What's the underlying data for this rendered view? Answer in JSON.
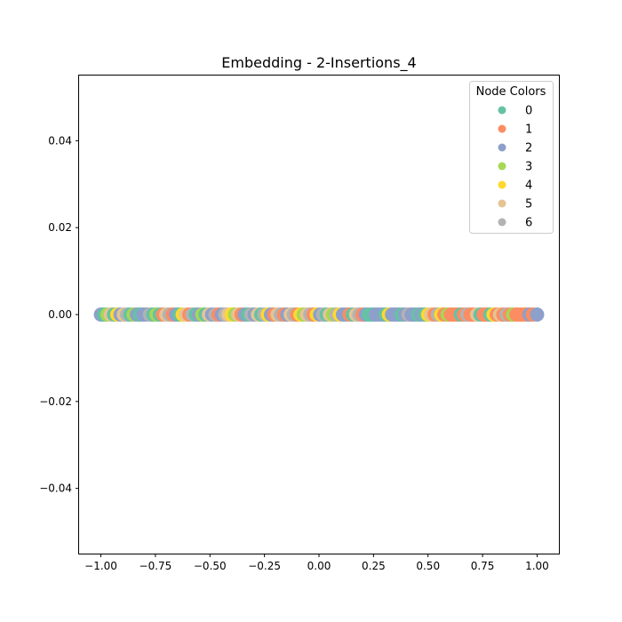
{
  "chart_data": {
    "type": "scatter",
    "title": "Embedding - 2-Insertions_4",
    "xlabel": "",
    "ylabel": "",
    "xlim": [
      -1.1,
      1.1
    ],
    "ylim": [
      -0.055,
      0.055
    ],
    "x_ticks": [
      -1.0,
      -0.75,
      -0.5,
      -0.25,
      0.0,
      0.25,
      0.5,
      0.75,
      1.0
    ],
    "x_tick_labels": [
      "−1.00",
      "−0.75",
      "−0.50",
      "−0.25",
      "0.00",
      "0.25",
      "0.50",
      "0.75",
      "1.00"
    ],
    "y_ticks": [
      0.04,
      0.02,
      0.0,
      -0.02,
      -0.04
    ],
    "y_tick_labels": [
      "0.04",
      "0.02",
      "0.00",
      "−0.02",
      "−0.04"
    ],
    "grid": false,
    "legend": {
      "title": "Node Colors",
      "placement": "top-right",
      "entries": [
        {
          "label": "0",
          "color": "#66c2a5"
        },
        {
          "label": "1",
          "color": "#fc8d62"
        },
        {
          "label": "2",
          "color": "#8da0cb"
        },
        {
          "label": "3",
          "color": "#a6d854"
        },
        {
          "label": "4",
          "color": "#ffd92f"
        },
        {
          "label": "5",
          "color": "#e5c494"
        },
        {
          "label": "6",
          "color": "#b3b3b3"
        }
      ]
    },
    "points": [
      {
        "x": -1.0,
        "y": 0,
        "c": 2
      },
      {
        "x": -0.985,
        "y": 0,
        "c": 0
      },
      {
        "x": -0.97,
        "y": 0,
        "c": 3
      },
      {
        "x": -0.955,
        "y": 0,
        "c": 5
      },
      {
        "x": -0.94,
        "y": 0,
        "c": 0
      },
      {
        "x": -0.925,
        "y": 0,
        "c": 4
      },
      {
        "x": -0.91,
        "y": 0,
        "c": 2
      },
      {
        "x": -0.895,
        "y": 0,
        "c": 5
      },
      {
        "x": -0.88,
        "y": 0,
        "c": 6
      },
      {
        "x": -0.865,
        "y": 0,
        "c": 0
      },
      {
        "x": -0.85,
        "y": 0,
        "c": 3
      },
      {
        "x": -0.835,
        "y": 0,
        "c": 2
      },
      {
        "x": -0.82,
        "y": 0,
        "c": 0
      },
      {
        "x": -0.805,
        "y": 0,
        "c": 2
      },
      {
        "x": -0.79,
        "y": 0,
        "c": 2
      },
      {
        "x": -0.775,
        "y": 0,
        "c": 6
      },
      {
        "x": -0.76,
        "y": 0,
        "c": 0
      },
      {
        "x": -0.745,
        "y": 0,
        "c": 3
      },
      {
        "x": -0.73,
        "y": 0,
        "c": 0
      },
      {
        "x": -0.715,
        "y": 0,
        "c": 1
      },
      {
        "x": -0.7,
        "y": 0,
        "c": 5
      },
      {
        "x": -0.685,
        "y": 0,
        "c": 6
      },
      {
        "x": -0.67,
        "y": 0,
        "c": 1
      },
      {
        "x": -0.655,
        "y": 0,
        "c": 2
      },
      {
        "x": -0.64,
        "y": 0,
        "c": 0
      },
      {
        "x": -0.625,
        "y": 0,
        "c": 4
      },
      {
        "x": -0.61,
        "y": 0,
        "c": 5
      },
      {
        "x": -0.595,
        "y": 0,
        "c": 1
      },
      {
        "x": -0.58,
        "y": 0,
        "c": 6
      },
      {
        "x": -0.565,
        "y": 0,
        "c": 0
      },
      {
        "x": -0.55,
        "y": 0,
        "c": 2
      },
      {
        "x": -0.535,
        "y": 0,
        "c": 3
      },
      {
        "x": -0.52,
        "y": 0,
        "c": 0
      },
      {
        "x": -0.505,
        "y": 0,
        "c": 5
      },
      {
        "x": -0.49,
        "y": 0,
        "c": 2
      },
      {
        "x": -0.475,
        "y": 0,
        "c": 6
      },
      {
        "x": -0.46,
        "y": 0,
        "c": 1
      },
      {
        "x": -0.445,
        "y": 0,
        "c": 2
      },
      {
        "x": -0.43,
        "y": 0,
        "c": 6
      },
      {
        "x": -0.415,
        "y": 0,
        "c": 5
      },
      {
        "x": -0.4,
        "y": 0,
        "c": 4
      },
      {
        "x": -0.385,
        "y": 0,
        "c": 3
      },
      {
        "x": -0.37,
        "y": 0,
        "c": 5
      },
      {
        "x": -0.355,
        "y": 0,
        "c": 1
      },
      {
        "x": -0.34,
        "y": 0,
        "c": 2
      },
      {
        "x": -0.325,
        "y": 0,
        "c": 0
      },
      {
        "x": -0.31,
        "y": 0,
        "c": 6
      },
      {
        "x": -0.295,
        "y": 0,
        "c": 2
      },
      {
        "x": -0.28,
        "y": 0,
        "c": 5
      },
      {
        "x": -0.265,
        "y": 0,
        "c": 0
      },
      {
        "x": -0.25,
        "y": 0,
        "c": 6
      },
      {
        "x": -0.235,
        "y": 0,
        "c": 4
      },
      {
        "x": -0.22,
        "y": 0,
        "c": 2
      },
      {
        "x": -0.205,
        "y": 0,
        "c": 1
      },
      {
        "x": -0.19,
        "y": 0,
        "c": 5
      },
      {
        "x": -0.175,
        "y": 0,
        "c": 6
      },
      {
        "x": -0.16,
        "y": 0,
        "c": 1
      },
      {
        "x": -0.145,
        "y": 0,
        "c": 2
      },
      {
        "x": -0.13,
        "y": 0,
        "c": 5
      },
      {
        "x": -0.115,
        "y": 0,
        "c": 6
      },
      {
        "x": -0.1,
        "y": 0,
        "c": 1
      },
      {
        "x": -0.085,
        "y": 0,
        "c": 4
      },
      {
        "x": -0.07,
        "y": 0,
        "c": 3
      },
      {
        "x": -0.055,
        "y": 0,
        "c": 5
      },
      {
        "x": -0.04,
        "y": 0,
        "c": 6
      },
      {
        "x": -0.025,
        "y": 0,
        "c": 1
      },
      {
        "x": -0.01,
        "y": 0,
        "c": 4
      },
      {
        "x": 0.005,
        "y": 0,
        "c": 2
      },
      {
        "x": 0.02,
        "y": 0,
        "c": 6
      },
      {
        "x": 0.035,
        "y": 0,
        "c": 0
      },
      {
        "x": 0.05,
        "y": 0,
        "c": 5
      },
      {
        "x": 0.065,
        "y": 0,
        "c": 3
      },
      {
        "x": 0.08,
        "y": 0,
        "c": 6
      },
      {
        "x": 0.095,
        "y": 0,
        "c": 4
      },
      {
        "x": 0.11,
        "y": 0,
        "c": 2
      },
      {
        "x": 0.125,
        "y": 0,
        "c": 2
      },
      {
        "x": 0.14,
        "y": 0,
        "c": 1
      },
      {
        "x": 0.155,
        "y": 0,
        "c": 0
      },
      {
        "x": 0.17,
        "y": 0,
        "c": 5
      },
      {
        "x": 0.185,
        "y": 0,
        "c": 6
      },
      {
        "x": 0.2,
        "y": 0,
        "c": 1
      },
      {
        "x": 0.215,
        "y": 0,
        "c": 2
      },
      {
        "x": 0.23,
        "y": 0,
        "c": 0
      },
      {
        "x": 0.245,
        "y": 0,
        "c": 0
      },
      {
        "x": 0.26,
        "y": 0,
        "c": 2
      },
      {
        "x": 0.275,
        "y": 0,
        "c": 2
      },
      {
        "x": 0.29,
        "y": 0,
        "c": 2
      },
      {
        "x": 0.305,
        "y": 0,
        "c": 0
      },
      {
        "x": 0.32,
        "y": 0,
        "c": 4
      },
      {
        "x": 0.335,
        "y": 0,
        "c": 2
      },
      {
        "x": 0.35,
        "y": 0,
        "c": 2
      },
      {
        "x": 0.365,
        "y": 0,
        "c": 2
      },
      {
        "x": 0.38,
        "y": 0,
        "c": 0
      },
      {
        "x": 0.395,
        "y": 0,
        "c": 2
      },
      {
        "x": 0.41,
        "y": 0,
        "c": 6
      },
      {
        "x": 0.425,
        "y": 0,
        "c": 2
      },
      {
        "x": 0.44,
        "y": 0,
        "c": 2
      },
      {
        "x": 0.455,
        "y": 0,
        "c": 0
      },
      {
        "x": 0.47,
        "y": 0,
        "c": 2
      },
      {
        "x": 0.485,
        "y": 0,
        "c": 0
      },
      {
        "x": 0.5,
        "y": 0,
        "c": 4
      },
      {
        "x": 0.515,
        "y": 0,
        "c": 5
      },
      {
        "x": 0.53,
        "y": 0,
        "c": 1
      },
      {
        "x": 0.545,
        "y": 0,
        "c": 6
      },
      {
        "x": 0.56,
        "y": 0,
        "c": 4
      },
      {
        "x": 0.575,
        "y": 0,
        "c": 1
      },
      {
        "x": 0.59,
        "y": 0,
        "c": 3
      },
      {
        "x": 0.605,
        "y": 0,
        "c": 1
      },
      {
        "x": 0.62,
        "y": 0,
        "c": 1
      },
      {
        "x": 0.635,
        "y": 0,
        "c": 1
      },
      {
        "x": 0.65,
        "y": 0,
        "c": 0
      },
      {
        "x": 0.665,
        "y": 0,
        "c": 1
      },
      {
        "x": 0.68,
        "y": 0,
        "c": 6
      },
      {
        "x": 0.695,
        "y": 0,
        "c": 1
      },
      {
        "x": 0.71,
        "y": 0,
        "c": 1
      },
      {
        "x": 0.725,
        "y": 0,
        "c": 5
      },
      {
        "x": 0.74,
        "y": 0,
        "c": 0
      },
      {
        "x": 0.755,
        "y": 0,
        "c": 1
      },
      {
        "x": 0.77,
        "y": 0,
        "c": 1
      },
      {
        "x": 0.785,
        "y": 0,
        "c": 0
      },
      {
        "x": 0.8,
        "y": 0,
        "c": 4
      },
      {
        "x": 0.815,
        "y": 0,
        "c": 1
      },
      {
        "x": 0.83,
        "y": 0,
        "c": 5
      },
      {
        "x": 0.845,
        "y": 0,
        "c": 1
      },
      {
        "x": 0.86,
        "y": 0,
        "c": 6
      },
      {
        "x": 0.875,
        "y": 0,
        "c": 1
      },
      {
        "x": 0.89,
        "y": 0,
        "c": 3
      },
      {
        "x": 0.905,
        "y": 0,
        "c": 1
      },
      {
        "x": 0.92,
        "y": 0,
        "c": 1
      },
      {
        "x": 0.935,
        "y": 0,
        "c": 1
      },
      {
        "x": 0.95,
        "y": 0,
        "c": 1
      },
      {
        "x": 0.965,
        "y": 0,
        "c": 2
      },
      {
        "x": 0.98,
        "y": 0,
        "c": 1
      },
      {
        "x": 1.0,
        "y": 0,
        "c": 2
      }
    ]
  }
}
